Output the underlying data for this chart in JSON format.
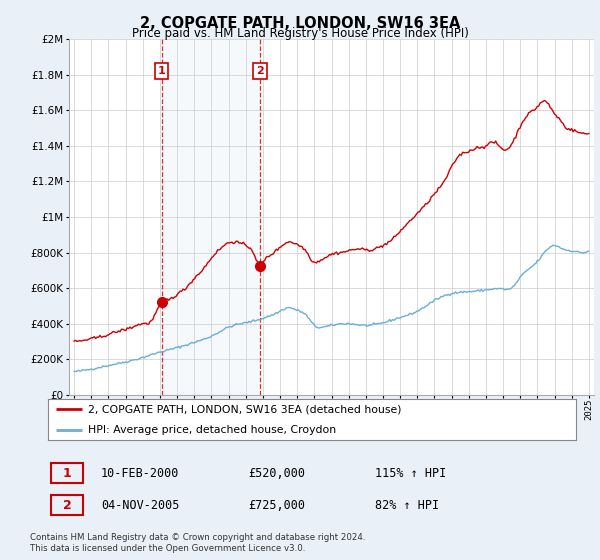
{
  "title": "2, COPGATE PATH, LONDON, SW16 3EA",
  "subtitle": "Price paid vs. HM Land Registry's House Price Index (HPI)",
  "legend_line1": "2, COPGATE PATH, LONDON, SW16 3EA (detached house)",
  "legend_line2": "HPI: Average price, detached house, Croydon",
  "sale1_label": "1",
  "sale1_date": "10-FEB-2000",
  "sale1_price": "£520,000",
  "sale1_hpi": "115% ↑ HPI",
  "sale2_label": "2",
  "sale2_date": "04-NOV-2005",
  "sale2_price": "£725,000",
  "sale2_hpi": "82% ↑ HPI",
  "footer": "Contains HM Land Registry data © Crown copyright and database right 2024.\nThis data is licensed under the Open Government Licence v3.0.",
  "hpi_color": "#6baed6",
  "price_color": "#cc0000",
  "sale1_x": 2000.11,
  "sale1_y": 520000,
  "sale2_x": 2005.84,
  "sale2_y": 725000,
  "sale1_vline_x": 2000.11,
  "sale2_vline_x": 2005.84,
  "ylim": [
    0,
    2000000
  ],
  "xlim_start": 1994.7,
  "xlim_end": 2025.3,
  "background_color": "#eaf0f8",
  "plot_bg": "#ffffff",
  "grid_color": "#cccccc"
}
